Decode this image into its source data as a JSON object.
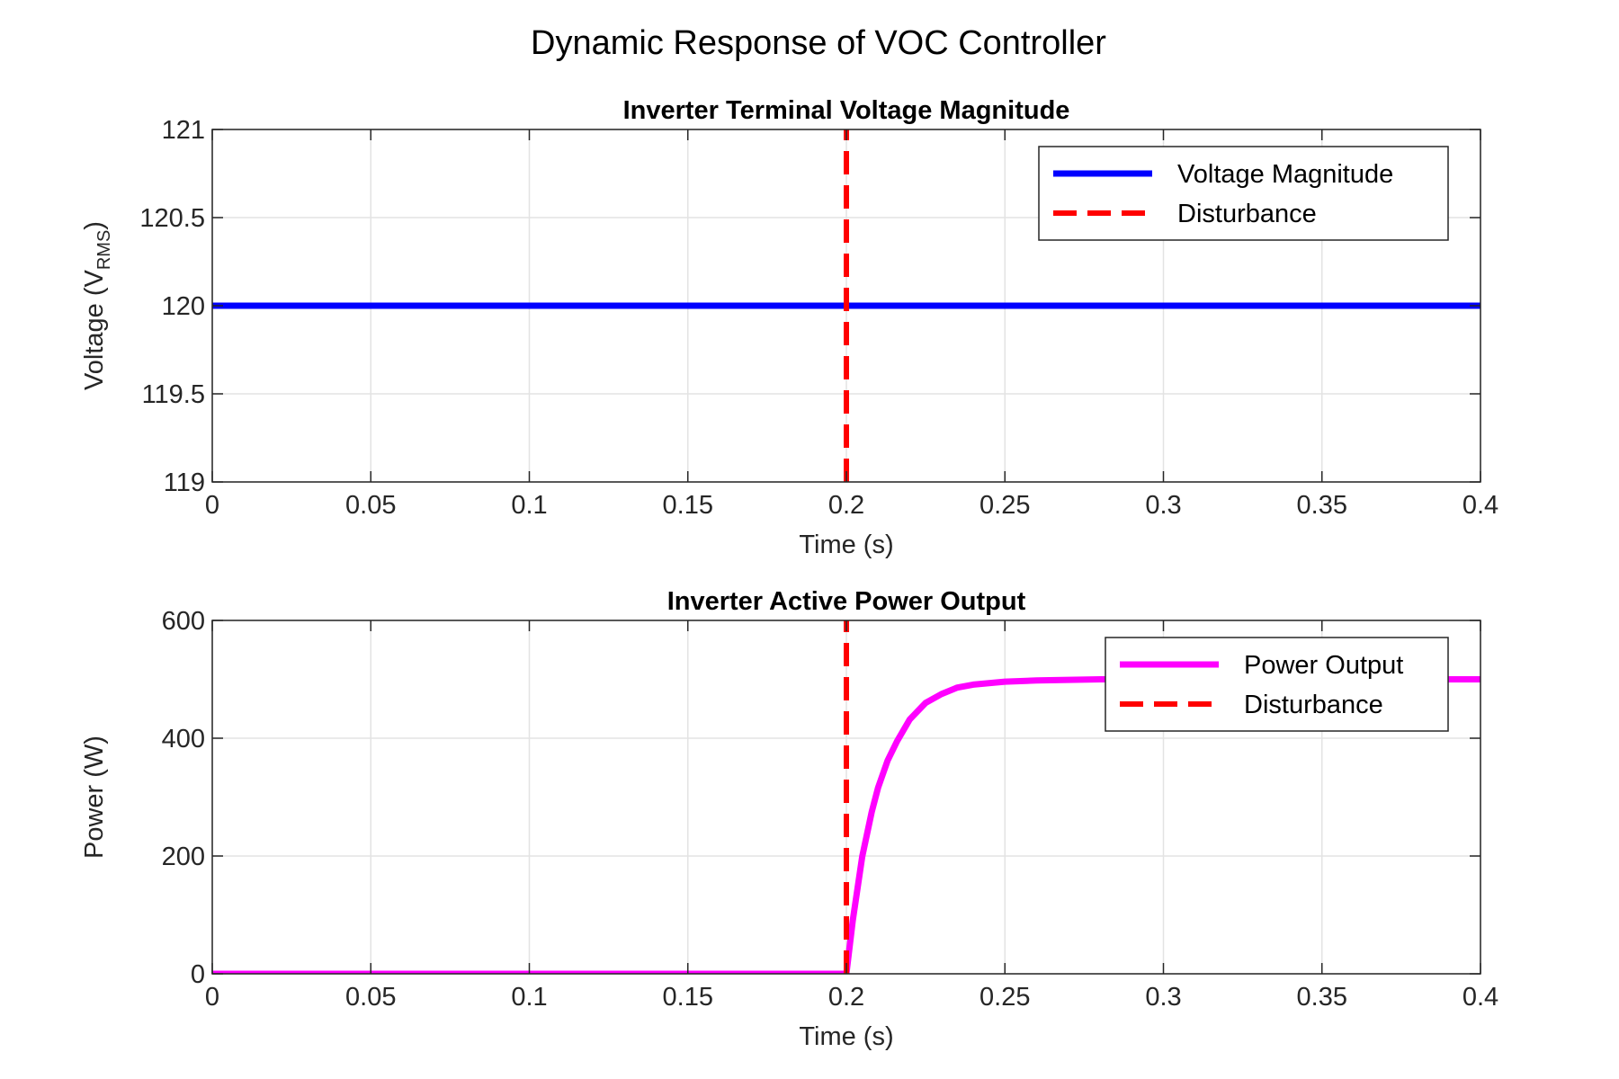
{
  "figure_title": "Dynamic Response of VOC Controller",
  "colors": {
    "voltage": "#0000FF",
    "power": "#FF00FF",
    "disturbance": "#FF0000",
    "grid": "#E3E3E3",
    "axis": "#262626"
  },
  "chart_data": [
    {
      "type": "line",
      "title": "Inverter Terminal Voltage Magnitude",
      "xlabel": "Time (s)",
      "ylabel_main": "Voltage (V",
      "ylabel_sub": "RMS",
      "ylabel_end": ")",
      "xlim": [
        0,
        0.4
      ],
      "ylim": [
        119,
        121
      ],
      "xticks": [
        0,
        0.05,
        0.1,
        0.15,
        0.2,
        0.25,
        0.3,
        0.35,
        0.4
      ],
      "xtick_labels": [
        "0",
        "0.05",
        "0.1",
        "0.15",
        "0.2",
        "0.25",
        "0.3",
        "0.35",
        "0.4"
      ],
      "yticks": [
        119,
        119.5,
        120,
        120.5,
        121
      ],
      "ytick_labels": [
        "119",
        "119.5",
        "120",
        "120.5",
        "121"
      ],
      "grid": true,
      "legend_position": "top-right",
      "series": [
        {
          "name": "Voltage Magnitude",
          "style": "solid",
          "x": [
            0,
            0.4
          ],
          "y": [
            120,
            120
          ]
        },
        {
          "name": "Disturbance",
          "style": "dashed",
          "x": [
            0.2,
            0.2
          ],
          "y": [
            119,
            121
          ]
        }
      ]
    },
    {
      "type": "line",
      "title": "Inverter Active Power Output",
      "xlabel": "Time (s)",
      "ylabel": "Power (W)",
      "xlim": [
        0,
        0.4
      ],
      "ylim": [
        0,
        600
      ],
      "xticks": [
        0,
        0.05,
        0.1,
        0.15,
        0.2,
        0.25,
        0.3,
        0.35,
        0.4
      ],
      "xtick_labels": [
        "0",
        "0.05",
        "0.1",
        "0.15",
        "0.2",
        "0.25",
        "0.3",
        "0.35",
        "0.4"
      ],
      "yticks": [
        0,
        200,
        400,
        600
      ],
      "ytick_labels": [
        "0",
        "200",
        "400",
        "600"
      ],
      "grid": true,
      "legend_position": "top-right",
      "series": [
        {
          "name": "Power Output",
          "style": "solid",
          "x": [
            0,
            0.2,
            0.202,
            0.205,
            0.208,
            0.21,
            0.213,
            0.216,
            0.22,
            0.225,
            0.23,
            0.235,
            0.24,
            0.25,
            0.26,
            0.28,
            0.3,
            0.35,
            0.4
          ],
          "y": [
            0,
            0,
            90,
            199,
            275,
            316,
            362,
            395,
            432,
            460,
            475,
            486,
            491,
            496,
            498,
            500,
            500,
            500,
            500
          ]
        },
        {
          "name": "Disturbance",
          "style": "dashed",
          "x": [
            0.2,
            0.2
          ],
          "y": [
            0,
            600
          ]
        }
      ]
    }
  ]
}
